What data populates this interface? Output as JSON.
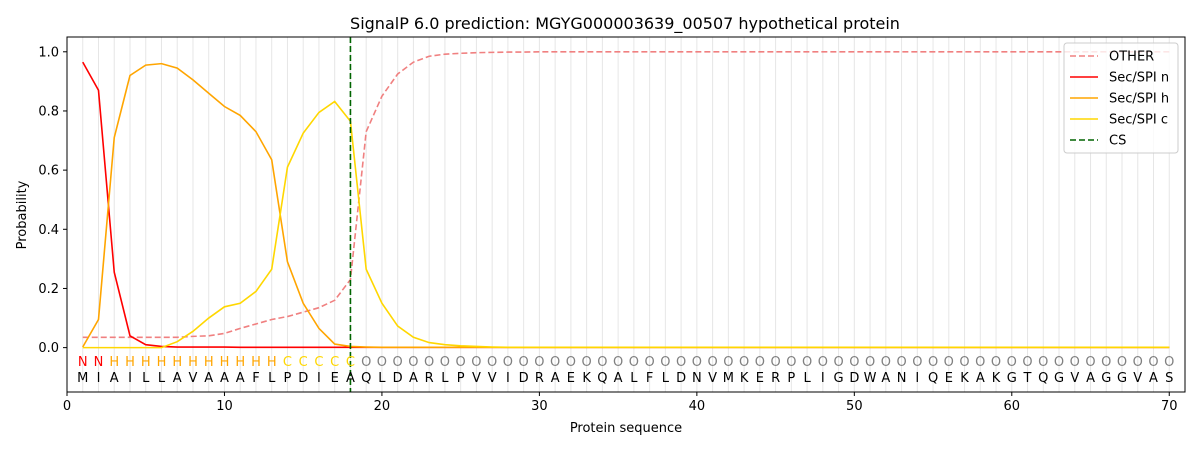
{
  "chart_data": {
    "type": "line",
    "title": "SignalP 6.0 prediction: MGYG000003639_00507 hypothetical protein",
    "xlabel": "Protein sequence",
    "ylabel": "Probability",
    "xlim": [
      0,
      71
    ],
    "ylim": [
      -0.15,
      1.05
    ],
    "xticks": [
      0,
      10,
      20,
      30,
      40,
      50,
      60,
      70
    ],
    "yticks": [
      "0.0",
      "0.2",
      "0.4",
      "0.6",
      "0.8",
      "1.0"
    ],
    "legend_position": "top-right",
    "sequence": [
      "M",
      "I",
      "A",
      "I",
      "L",
      "L",
      "A",
      "V",
      "A",
      "A",
      "A",
      "F",
      "L",
      "P",
      "D",
      "I",
      "E",
      "A",
      "Q",
      "L",
      "D",
      "A",
      "R",
      "L",
      "P",
      "V",
      "V",
      "I",
      "D",
      "R",
      "A",
      "E",
      "K",
      "Q",
      "A",
      "L",
      "F",
      "L",
      "D",
      "N",
      "V",
      "M",
      "K",
      "E",
      "R",
      "P",
      "L",
      "I",
      "G",
      "D",
      "W",
      "A",
      "N",
      "I",
      "Q",
      "E",
      "K",
      "A",
      "K",
      "G",
      "T",
      "Q",
      "G",
      "V",
      "A",
      "G",
      "G",
      "V",
      "A",
      "S"
    ],
    "annotations": [
      "N",
      "N",
      "H",
      "H",
      "H",
      "H",
      "H",
      "H",
      "H",
      "H",
      "H",
      "H",
      "H",
      "C",
      "C",
      "C",
      "C",
      "C",
      "O",
      "O",
      "O",
      "O",
      "O",
      "O",
      "O",
      "O",
      "O",
      "O",
      "O",
      "O",
      "O",
      "O",
      "O",
      "O",
      "O",
      "O",
      "O",
      "O",
      "O",
      "O",
      "O",
      "O",
      "O",
      "O",
      "O",
      "O",
      "O",
      "O",
      "O",
      "O",
      "O",
      "O",
      "O",
      "O",
      "O",
      "O",
      "O",
      "O",
      "O",
      "O",
      "O",
      "O",
      "O",
      "O",
      "O",
      "O",
      "O",
      "O",
      "O",
      "O"
    ],
    "annotation_colors": {
      "N": "#ff0000",
      "H": "#ffa500",
      "C": "#ffd700",
      "O": "#808080"
    },
    "cs_position": 18,
    "series": [
      {
        "name": "OTHER",
        "color": "#f08080",
        "style": "dashed",
        "values": [
          0.035,
          0.035,
          0.035,
          0.035,
          0.035,
          0.035,
          0.035,
          0.038,
          0.04,
          0.048,
          0.065,
          0.08,
          0.095,
          0.105,
          0.12,
          0.135,
          0.16,
          0.23,
          0.73,
          0.85,
          0.925,
          0.965,
          0.985,
          0.992,
          0.995,
          0.997,
          0.998,
          0.999,
          0.999,
          1.0,
          1.0,
          1.0,
          1.0,
          1.0,
          1.0,
          1.0,
          1.0,
          1.0,
          1.0,
          1.0,
          1.0,
          1.0,
          1.0,
          1.0,
          1.0,
          1.0,
          1.0,
          1.0,
          1.0,
          1.0,
          1.0,
          1.0,
          1.0,
          1.0,
          1.0,
          1.0,
          1.0,
          1.0,
          1.0,
          1.0,
          1.0,
          1.0,
          1.0,
          1.0,
          1.0,
          1.0,
          1.0,
          1.0,
          1.0,
          1.0
        ]
      },
      {
        "name": "Sec/SPI n",
        "color": "#ff0000",
        "style": "solid",
        "values": [
          0.965,
          0.87,
          0.255,
          0.04,
          0.01,
          0.004,
          0.002,
          0.002,
          0.002,
          0.002,
          0.001,
          0.001,
          0.001,
          0.001,
          0.001,
          0.001,
          0.001,
          0.001,
          0.001,
          0.001,
          0.001,
          0.001,
          0.001,
          0.001,
          0.001,
          0.001,
          0.001,
          0.001,
          0.001,
          0.001,
          0.001,
          0.001,
          0.001,
          0.001,
          0.001,
          0.001,
          0.001,
          0.001,
          0.001,
          0.001,
          0.001,
          0.001,
          0.001,
          0.001,
          0.001,
          0.001,
          0.001,
          0.001,
          0.001,
          0.001,
          0.001,
          0.001,
          0.001,
          0.001,
          0.001,
          0.001,
          0.001,
          0.001,
          0.001,
          0.001,
          0.001,
          0.001,
          0.001,
          0.001,
          0.001,
          0.001,
          0.001,
          0.001,
          0.001,
          0.001
        ]
      },
      {
        "name": "Sec/SPI h",
        "color": "#ffa500",
        "style": "solid",
        "values": [
          0.002,
          0.095,
          0.71,
          0.92,
          0.955,
          0.96,
          0.945,
          0.905,
          0.86,
          0.815,
          0.785,
          0.73,
          0.635,
          0.29,
          0.15,
          0.065,
          0.012,
          0.004,
          0.002,
          0.001,
          0.001,
          0.001,
          0.001,
          0.001,
          0.001,
          0.001,
          0.001,
          0.001,
          0.001,
          0.001,
          0.001,
          0.001,
          0.001,
          0.001,
          0.001,
          0.001,
          0.001,
          0.001,
          0.001,
          0.001,
          0.001,
          0.001,
          0.001,
          0.001,
          0.001,
          0.001,
          0.001,
          0.001,
          0.001,
          0.001,
          0.001,
          0.001,
          0.001,
          0.001,
          0.001,
          0.001,
          0.001,
          0.001,
          0.001,
          0.001,
          0.001,
          0.001,
          0.001,
          0.001,
          0.001,
          0.001,
          0.001,
          0.001,
          0.001,
          0.001
        ]
      },
      {
        "name": "Sec/SPI c",
        "color": "#ffd700",
        "style": "solid",
        "values": [
          0.0,
          0.0,
          0.0,
          0.0,
          0.0,
          0.0,
          0.02,
          0.055,
          0.1,
          0.138,
          0.15,
          0.19,
          0.265,
          0.61,
          0.725,
          0.795,
          0.832,
          0.765,
          0.265,
          0.15,
          0.073,
          0.035,
          0.017,
          0.01,
          0.006,
          0.004,
          0.002,
          0.001,
          0.001,
          0.001,
          0.001,
          0.001,
          0.001,
          0.001,
          0.001,
          0.001,
          0.001,
          0.001,
          0.001,
          0.001,
          0.001,
          0.001,
          0.001,
          0.001,
          0.001,
          0.001,
          0.001,
          0.001,
          0.001,
          0.001,
          0.001,
          0.001,
          0.001,
          0.001,
          0.001,
          0.001,
          0.001,
          0.001,
          0.001,
          0.001,
          0.001,
          0.001,
          0.001,
          0.001,
          0.001,
          0.001,
          0.001,
          0.001,
          0.001,
          0.001
        ]
      }
    ],
    "cs_legend": {
      "name": "CS",
      "color": "#006400",
      "style": "dashed"
    }
  }
}
